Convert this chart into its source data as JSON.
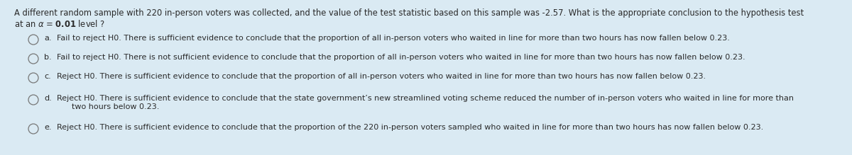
{
  "background_color": "#daeaf3",
  "fig_width": 12.0,
  "fig_height": 2.19,
  "dpi": 100,
  "header_line1": "A different random sample with 220 in-person voters was collected, and the value of the test statistic based on this sample was -2.57. What is the appropriate conclusion to the hypothesis test",
  "header_line2": "at an ",
  "header_bold_val": "0.01",
  "header_end": " level ?",
  "options": [
    {
      "label": "a.",
      "text": "Fail to reject H0. There is sufficient evidence to conclude that the proportion of all in-person voters who waited in line for more than two hours has now fallen below 0.23."
    },
    {
      "label": "b.",
      "text": "Fail to reject H0. There is not sufficient evidence to conclude that the proportion of all in-person voters who waited in line for more than two hours has now fallen below 0.23."
    },
    {
      "label": "c.",
      "text": "Reject H0. There is sufficient evidence to conclude that the proportion of all in-person voters who waited in line for more than two hours has now fallen below 0.23."
    },
    {
      "label": "d.",
      "text": "Reject H0. There is sufficient evidence to conclude that the state government’s new streamlined voting scheme reduced the number of in-person voters who waited in line for more than\n      two hours below 0.23."
    },
    {
      "label": "e.",
      "text": "Reject H0. There is sufficient evidence to conclude that the proportion of the 220 in-person voters sampled who waited in line for more than two hours has now fallen below 0.23."
    }
  ],
  "text_color": "#2a2a2a",
  "circle_edge_color": "#777777",
  "font_size_header": 8.3,
  "font_size_options": 8.0
}
